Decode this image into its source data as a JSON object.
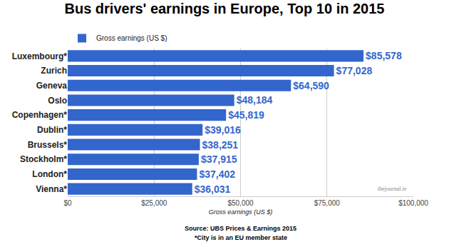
{
  "chart_data": {
    "type": "bar",
    "orientation": "horizontal",
    "title": "Bus drivers' earnings in Europe, Top 10 in 2015",
    "x_label": "Gross earnings (US $)",
    "categories": [
      "Luxembourg*",
      "Zurich",
      "Geneva",
      "Oslo",
      "Copenhagen*",
      "Dublin*",
      "Brussels*",
      "Stockholm*",
      "London*",
      "Vienna*"
    ],
    "series": [
      {
        "name": "Gross earnings (US $)",
        "color": "#3366cc",
        "values": [
          85578,
          77028,
          64590,
          48184,
          45819,
          39016,
          38251,
          37915,
          37402,
          36031
        ],
        "value_labels": [
          "$85,578",
          "$77,028",
          "$64,590",
          "$48,184",
          "$45,819",
          "$39,016",
          "$38,251",
          "$37,915",
          "$37,402",
          "$36,031"
        ]
      }
    ],
    "xlim": [
      0,
      100000
    ],
    "xticks": [
      {
        "value": 0,
        "label": "$0"
      },
      {
        "value": 25000,
        "label": "$25,000"
      },
      {
        "value": 50000,
        "label": "$50,000"
      },
      {
        "value": 75000,
        "label": "$75,000"
      },
      {
        "value": 100000,
        "label": "$100,000"
      }
    ],
    "grid": true,
    "legend": "top-left",
    "data_labels": true,
    "annotations": [
      "Source: UBS Prices & Earnings 2015",
      "*City is in an EU member state",
      "thejournal.ie"
    ]
  }
}
